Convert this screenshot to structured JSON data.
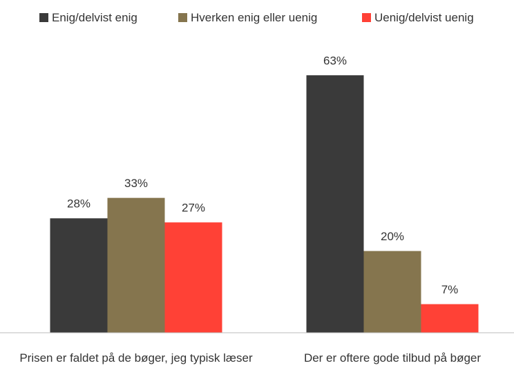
{
  "chart_data": {
    "type": "bar",
    "categories": [
      "Prisen er faldet på de bøger, jeg typisk læser",
      "Der er oftere gode tilbud på bøger"
    ],
    "series": [
      {
        "name": "Enig/delvist enig",
        "color": "#3a3a3a",
        "values": [
          28,
          63
        ],
        "value_labels": [
          "28%",
          "63%"
        ]
      },
      {
        "name": "Hverken enig eller uenig",
        "color": "#85754e",
        "values": [
          33,
          20
        ],
        "value_labels": [
          "33%",
          "20%"
        ]
      },
      {
        "name": "Uenig/delvist uenig",
        "color": "#ff4136",
        "values": [
          27,
          7
        ],
        "value_labels": [
          "27%",
          "7%"
        ]
      }
    ],
    "legend": "top"
  }
}
